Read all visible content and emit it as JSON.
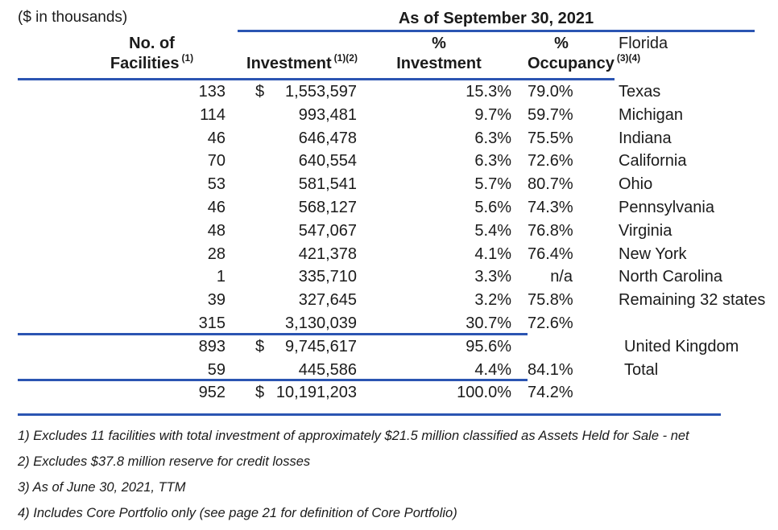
{
  "meta": {
    "units_label": "($ in thousands)",
    "as_of_label": "As of September 30, 2021"
  },
  "colors": {
    "rule_blue": "#2b55b2",
    "text": "#1b1b1b",
    "background": "#ffffff"
  },
  "table": {
    "col_headers": {
      "facilities_line1": "No. of",
      "facilities_line2": "Facilities",
      "facilities_sup": "(1)",
      "investment_line1": "",
      "investment_line2": "Investment",
      "investment_sup": "(1)(2)",
      "pct_investment_line1": "%",
      "pct_investment_line2": "Investment",
      "pct_occupancy_line1": "%",
      "pct_occupancy_line2": "Occupancy",
      "pct_occupancy_sup": "(3)(4)"
    },
    "rows": [
      {
        "label": "Florida",
        "facilities": "133",
        "currency": "$",
        "investment": "1,553,597",
        "pct_investment": "15.3%",
        "pct_occupancy": "79.0%"
      },
      {
        "label": "Texas",
        "facilities": "114",
        "currency": "",
        "investment": "993,481",
        "pct_investment": "9.7%",
        "pct_occupancy": "59.7%"
      },
      {
        "label": "Michigan",
        "facilities": "46",
        "currency": "",
        "investment": "646,478",
        "pct_investment": "6.3%",
        "pct_occupancy": "75.5%"
      },
      {
        "label": "Indiana",
        "facilities": "70",
        "currency": "",
        "investment": "640,554",
        "pct_investment": "6.3%",
        "pct_occupancy": "72.6%"
      },
      {
        "label": "California",
        "facilities": "53",
        "currency": "",
        "investment": "581,541",
        "pct_investment": "5.7%",
        "pct_occupancy": "80.7%"
      },
      {
        "label": "Ohio",
        "facilities": "46",
        "currency": "",
        "investment": "568,127",
        "pct_investment": "5.6%",
        "pct_occupancy": "74.3%"
      },
      {
        "label": "Pennsylvania",
        "facilities": "48",
        "currency": "",
        "investment": "547,067",
        "pct_investment": "5.4%",
        "pct_occupancy": "76.8%"
      },
      {
        "label": "Virginia",
        "facilities": "28",
        "currency": "",
        "investment": "421,378",
        "pct_investment": "4.1%",
        "pct_occupancy": "76.4%"
      },
      {
        "label": "New York",
        "facilities": "1",
        "currency": "",
        "investment": "335,710",
        "pct_investment": "3.3%",
        "pct_occupancy": "n/a"
      },
      {
        "label": "North Carolina",
        "facilities": "39",
        "currency": "",
        "investment": "327,645",
        "pct_investment": "3.2%",
        "pct_occupancy": "75.8%"
      },
      {
        "label": "Remaining 32 states",
        "facilities": "315",
        "currency": "",
        "investment": "3,130,039",
        "pct_investment": "30.7%",
        "pct_occupancy": "72.6%",
        "rule_below": true
      },
      {
        "label": "",
        "facilities": "893",
        "currency": "$",
        "investment": "9,745,617",
        "pct_investment": "95.6%",
        "pct_occupancy": ""
      },
      {
        "label": "United Kingdom",
        "facilities": "59",
        "currency": "",
        "investment": "445,586",
        "pct_investment": "4.4%",
        "pct_occupancy": "84.1%",
        "rule_below": true,
        "indent": true
      },
      {
        "label": "Total",
        "facilities": "952",
        "currency": "$",
        "investment": "10,191,203",
        "pct_investment": "100.0%",
        "pct_occupancy": "74.2%",
        "indent": true
      }
    ],
    "footnotes": [
      "1) Excludes 11 facilities with total investment of approximately $21.5 million classified as Assets Held for Sale - net",
      "2) Excludes $37.8 million reserve for credit losses",
      "3) As of June 30, 2021, TTM",
      "4) Includes Core Portfolio only (see page 21 for definition of Core Portfolio)"
    ]
  }
}
